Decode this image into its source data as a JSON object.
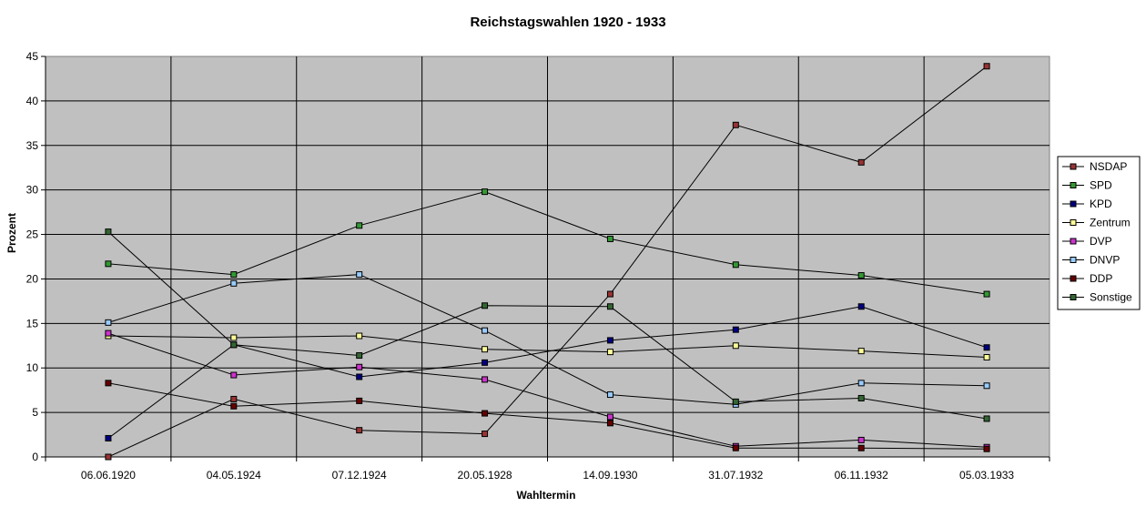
{
  "chart_data": {
    "type": "line",
    "title": "Reichstagswahlen 1920 - 1933",
    "xlabel": "Wahltermin",
    "ylabel": "Prozent",
    "ylim": [
      0,
      45
    ],
    "y_ticks": [
      "0",
      "5",
      "10",
      "15",
      "20",
      "25",
      "30",
      "35",
      "40",
      "45"
    ],
    "grid": true,
    "legend_position": "right",
    "plot_background": "#c0c0c0",
    "categories": [
      "06.06.1920",
      "04.05.1924",
      "07.12.1924",
      "20.05.1928",
      "14.09.1930",
      "31.07.1932",
      "06.11.1932",
      "05.03.1933"
    ],
    "series": [
      {
        "name": "NSDAP",
        "color": "#993333",
        "values": [
          0.0,
          6.5,
          3.0,
          2.6,
          18.3,
          37.3,
          33.1,
          43.9
        ]
      },
      {
        "name": "SPD",
        "color": "#339933",
        "values": [
          21.7,
          20.5,
          26.0,
          29.8,
          24.5,
          21.6,
          20.4,
          18.3
        ]
      },
      {
        "name": "KPD",
        "color": "#000080",
        "values": [
          2.1,
          12.6,
          9.0,
          10.6,
          13.1,
          14.3,
          16.9,
          12.3
        ]
      },
      {
        "name": "Zentrum",
        "color": "#ffff99",
        "values": [
          13.6,
          13.4,
          13.6,
          12.1,
          11.8,
          12.5,
          11.9,
          11.2
        ]
      },
      {
        "name": "DVP",
        "color": "#cc33cc",
        "values": [
          13.9,
          9.2,
          10.1,
          8.7,
          4.5,
          1.2,
          1.9,
          1.1
        ]
      },
      {
        "name": "DNVP",
        "color": "#99ccff",
        "values": [
          15.1,
          19.5,
          20.5,
          14.2,
          7.0,
          5.9,
          8.3,
          8.0
        ]
      },
      {
        "name": "DDP",
        "color": "#660000",
        "values": [
          8.3,
          5.7,
          6.3,
          4.9,
          3.8,
          1.0,
          1.0,
          0.9
        ]
      },
      {
        "name": "Sonstige",
        "color": "#336633",
        "values": [
          25.3,
          12.6,
          11.4,
          17.0,
          16.9,
          6.2,
          6.6,
          4.3
        ]
      }
    ]
  }
}
